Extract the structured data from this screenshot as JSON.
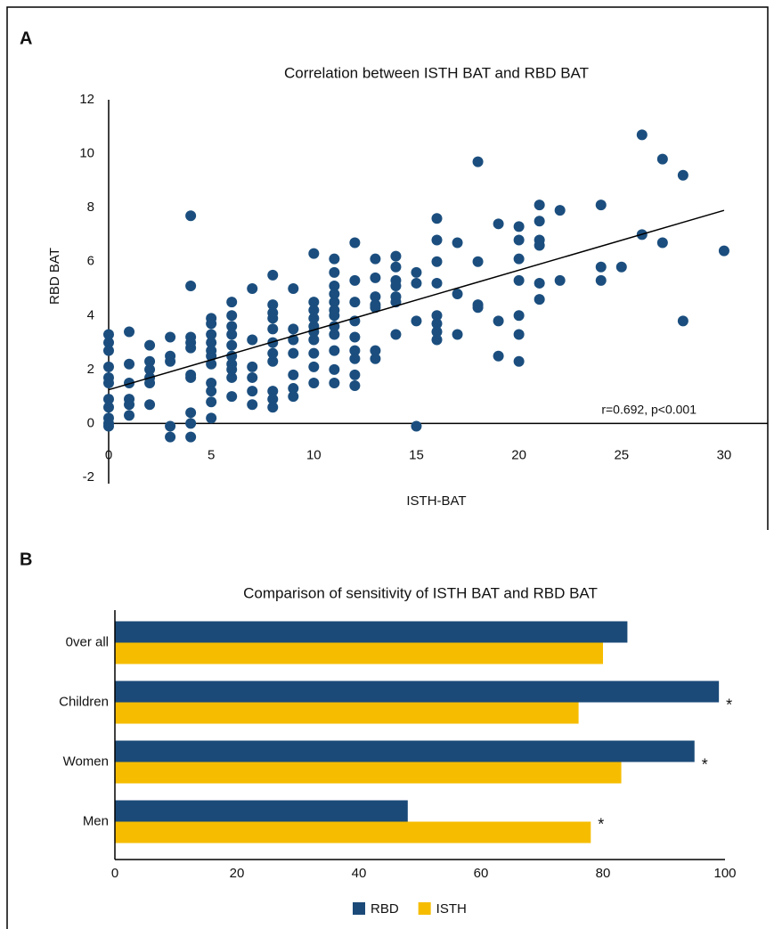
{
  "chart_data": [
    {
      "type": "scatter",
      "panel_label": "A",
      "title": "Correlation between ISTH BAT and RBD BAT",
      "x_label": "ISTH-BAT",
      "y_label": "RBD BAT",
      "annotation": "r=0.692, p<0.001",
      "color": "#1b4e7e",
      "x": [
        0,
        0,
        0,
        0,
        0,
        0,
        0,
        0,
        0,
        0,
        0,
        1,
        1,
        1,
        1,
        1,
        1,
        2,
        2,
        2,
        2,
        2,
        2,
        3,
        3,
        3,
        3,
        3,
        4,
        4,
        4,
        4,
        4,
        4,
        4,
        4,
        4,
        4,
        5,
        5,
        5,
        5,
        5,
        5,
        5,
        5,
        5,
        5,
        5,
        6,
        6,
        6,
        6,
        6,
        6,
        6,
        6,
        6,
        6,
        7,
        7,
        7,
        7,
        7,
        7,
        8,
        8,
        8,
        8,
        8,
        8,
        8,
        8,
        8,
        8,
        8,
        9,
        9,
        9,
        9,
        9,
        9,
        9,
        10,
        10,
        10,
        10,
        10,
        10,
        10,
        10,
        10,
        10,
        11,
        11,
        11,
        11,
        11,
        11,
        11,
        11,
        11,
        11,
        11,
        11,
        12,
        12,
        12,
        12,
        12,
        12,
        12,
        12,
        12,
        13,
        13,
        13,
        13,
        13,
        13,
        13,
        14,
        14,
        14,
        14,
        14,
        14,
        14,
        15,
        15,
        15,
        15,
        16,
        16,
        16,
        16,
        16,
        16,
        16,
        16,
        17,
        17,
        17,
        18,
        18,
        18,
        18,
        19,
        19,
        19,
        20,
        20,
        20,
        20,
        20,
        20,
        20,
        21,
        21,
        21,
        21,
        21,
        21,
        22,
        22,
        24,
        24,
        24,
        25,
        26,
        26,
        27,
        27,
        28,
        28,
        30
      ],
      "values": [
        3.3,
        3.0,
        2.7,
        2.1,
        1.7,
        1.5,
        0.9,
        0.6,
        0.2,
        0.0,
        -0.1,
        3.4,
        2.2,
        1.5,
        0.9,
        0.7,
        0.3,
        2.9,
        2.3,
        2.0,
        1.7,
        1.5,
        0.7,
        3.2,
        2.5,
        2.3,
        -0.1,
        -0.5,
        7.7,
        5.1,
        3.2,
        3.0,
        2.8,
        1.8,
        1.7,
        0.4,
        0.0,
        -0.5,
        3.9,
        3.7,
        3.3,
        3.0,
        2.7,
        2.5,
        2.2,
        1.5,
        1.2,
        0.8,
        0.2,
        4.5,
        4.0,
        3.6,
        3.3,
        2.9,
        2.5,
        2.2,
        2.0,
        1.7,
        1.0,
        5.0,
        3.1,
        2.1,
        1.7,
        1.2,
        0.7,
        5.5,
        4.4,
        4.1,
        3.9,
        3.5,
        3.0,
        2.6,
        2.3,
        1.2,
        0.9,
        0.6,
        5.0,
        3.5,
        3.1,
        2.6,
        1.8,
        1.3,
        1.0,
        6.3,
        4.5,
        4.2,
        3.9,
        3.6,
        3.4,
        3.1,
        2.6,
        2.1,
        1.5,
        6.1,
        5.6,
        5.1,
        4.8,
        4.5,
        4.2,
        4.0,
        3.6,
        3.3,
        2.7,
        2.0,
        1.5,
        6.7,
        5.3,
        4.5,
        3.8,
        3.2,
        2.7,
        2.4,
        1.8,
        1.4,
        6.1,
        5.4,
        4.7,
        4.4,
        4.3,
        2.7,
        2.4,
        6.2,
        5.8,
        5.3,
        5.1,
        4.7,
        4.5,
        3.3,
        5.6,
        5.2,
        3.8,
        -0.1,
        7.6,
        6.8,
        6.0,
        5.2,
        4.0,
        3.7,
        3.4,
        3.1,
        6.7,
        4.8,
        3.3,
        9.7,
        6.0,
        4.4,
        4.3,
        7.4,
        3.8,
        2.5,
        7.3,
        6.8,
        6.1,
        5.3,
        4.0,
        3.3,
        2.3,
        8.1,
        7.5,
        6.8,
        6.6,
        5.2,
        4.6,
        7.9,
        5.3,
        8.1,
        5.8,
        5.3,
        5.8,
        10.7,
        7.0,
        9.8,
        6.7,
        9.2,
        3.8,
        6.4
      ],
      "trend_line": {
        "x": [
          0,
          30
        ],
        "y": [
          1.25,
          7.9
        ]
      },
      "xlim": [
        0,
        32
      ],
      "ylim": [
        -2,
        12
      ],
      "xticks": [
        0,
        5,
        10,
        15,
        20,
        25,
        30
      ],
      "yticks": [
        -2,
        0,
        2,
        4,
        6,
        8,
        10,
        12
      ]
    },
    {
      "type": "hbar",
      "panel_label": "B",
      "title": "Comparison of sensitivity of ISTH BAT and RBD BAT",
      "categories": [
        "0ver all",
        "Children",
        "Women",
        "Men"
      ],
      "series": [
        {
          "name": "RBD",
          "color": "#1b4a78",
          "values": [
            84,
            99,
            95,
            48
          ]
        },
        {
          "name": "ISTH",
          "color": "#f6bd00",
          "values": [
            80,
            76,
            83,
            78
          ]
        }
      ],
      "markers": [
        null,
        "*",
        "*",
        "*"
      ],
      "xlim": [
        0,
        100
      ],
      "xticks": [
        0,
        20,
        40,
        60,
        80,
        100
      ],
      "legend": "bottom"
    }
  ]
}
